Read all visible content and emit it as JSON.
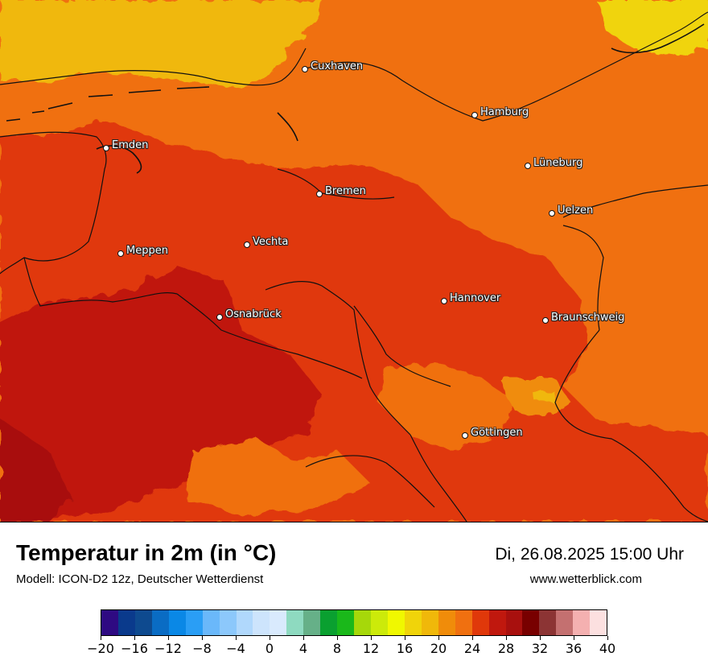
{
  "map": {
    "cities": [
      {
        "name": "Cuxhaven"
      },
      {
        "name": "Hamburg"
      },
      {
        "name": "Emden"
      },
      {
        "name": "Lüneburg"
      },
      {
        "name": "Bremen"
      },
      {
        "name": "Uelzen"
      },
      {
        "name": "Vechta"
      },
      {
        "name": "Meppen"
      },
      {
        "name": "Hannover"
      },
      {
        "name": "Osnabrück"
      },
      {
        "name": "Braunschweig"
      },
      {
        "name": "Göttingen"
      }
    ]
  },
  "footer": {
    "title": "Temperatur in 2m (in °C)",
    "model": "Modell: ICON-D2 12z, Deutscher Wetterdienst",
    "datetime": "Di, 26.08.2025 15:00 Uhr",
    "site": "www.wetterblick.com"
  },
  "legend": {
    "colors": [
      "#2e0a82",
      "#0a3a8c",
      "#0e4a8f",
      "#0a6cc4",
      "#0a88e6",
      "#2a9ef5",
      "#6ab8fa",
      "#8cc8fb",
      "#b0d8fc",
      "#cde4fc",
      "#d9eafd",
      "#8edac0",
      "#66b088",
      "#0aa030",
      "#1ab81a",
      "#a6d80a",
      "#ccea0a",
      "#f0f800",
      "#f0d40a",
      "#f0b80a",
      "#f08c0a",
      "#f07010",
      "#e0380a",
      "#c0180e",
      "#a8100e",
      "#780000",
      "#8c3434",
      "#c47070",
      "#f4b0b0",
      "#fce0e0"
    ],
    "ticks": [
      "−20",
      "−16",
      "−12",
      "−8",
      "−4",
      "0",
      "4",
      "8",
      "12",
      "16",
      "20",
      "24",
      "28",
      "32",
      "36",
      "40"
    ]
  }
}
